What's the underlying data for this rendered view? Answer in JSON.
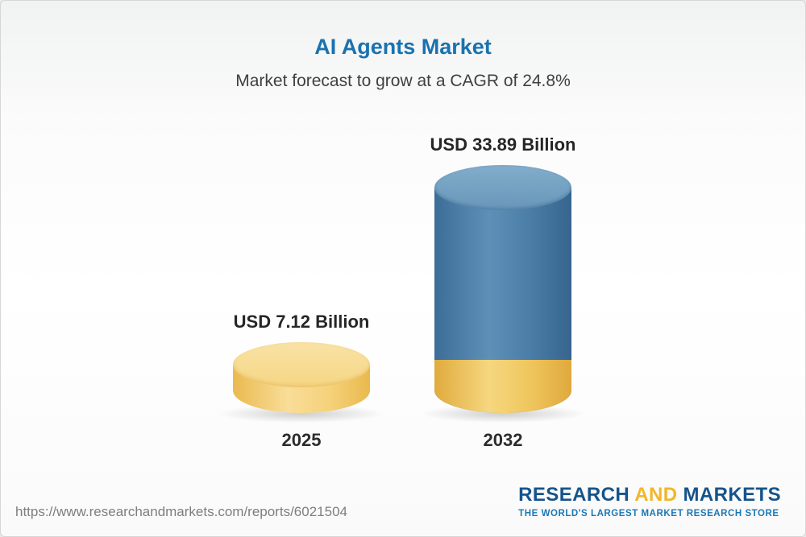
{
  "chart_data": {
    "type": "bar",
    "title": "AI Agents Market",
    "subtitle": "Market forecast to grow at a CAGR of 24.8%",
    "unit": "USD Billion",
    "categories": [
      "2025",
      "2032"
    ],
    "values": [
      7.12,
      33.89
    ],
    "value_labels": [
      "USD 7.12 Billion",
      "USD 33.89 Billion"
    ],
    "cagr_percent": 24.8,
    "bar_colors": [
      "#f5cf74",
      "#4a7da7"
    ],
    "legend_position": "none",
    "grid": false
  },
  "footer": {
    "url": "https://www.researchandmarkets.com/reports/6021504",
    "brand": {
      "research": "RESEARCH",
      "and": "AND",
      "markets": "MARKETS",
      "tagline": "THE WORLD'S LARGEST MARKET RESEARCH STORE"
    },
    "colors": {
      "brand_blue": "#15548b",
      "brand_yellow": "#f2b629",
      "tagline_blue": "#1a78b6"
    }
  }
}
